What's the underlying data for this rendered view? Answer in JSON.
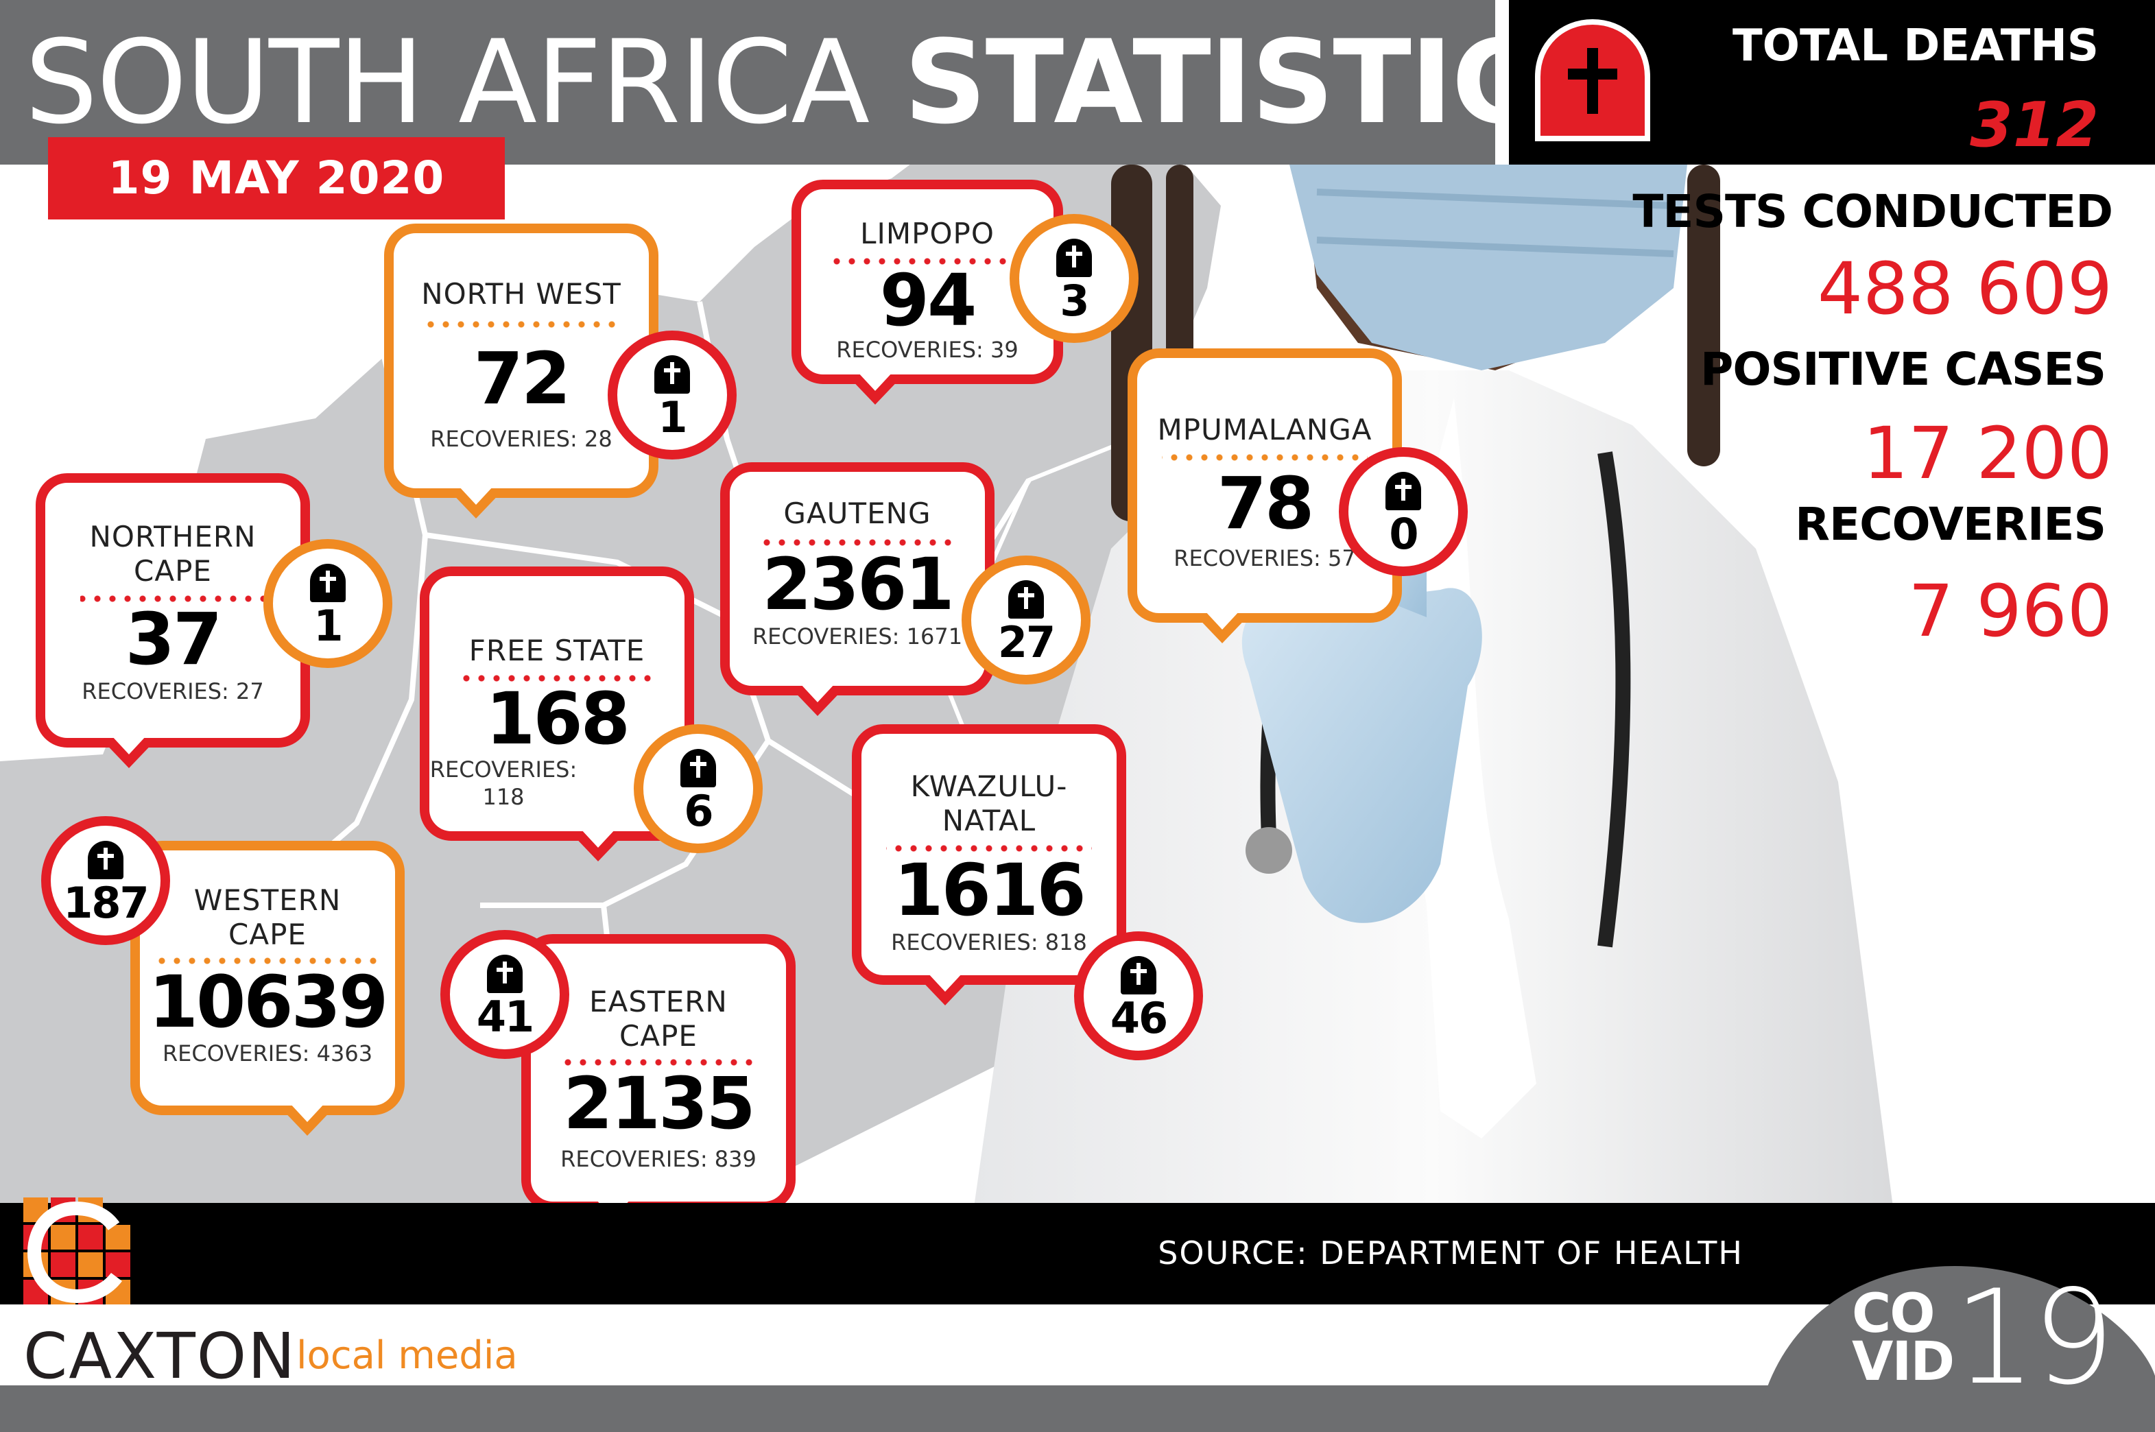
{
  "header": {
    "title_light": "SOUTH AFRICA",
    "title_bold": "STATISTICS",
    "date": "19 MAY 2020"
  },
  "totals": {
    "deaths_label": "TOTAL DEATHS",
    "deaths_value": "312",
    "tests_label": "TESTS CONDUCTED",
    "tests_value": "488 609",
    "positive_label": "POSITIVE CASES",
    "positive_value": "17 200",
    "recoveries_label": "RECOVERIES",
    "recoveries_value": "7 960"
  },
  "provinces": [
    {
      "id": "north-west",
      "name": "NORTH WEST",
      "cases": "72",
      "recoveries": "RECOVERIES: 28",
      "deaths": "1"
    },
    {
      "id": "limpopo",
      "name": "LIMPOPO",
      "cases": "94",
      "recoveries": "RECOVERIES: 39",
      "deaths": "3"
    },
    {
      "id": "mpumalanga",
      "name": "MPUMALANGA",
      "cases": "78",
      "recoveries": "RECOVERIES: 57",
      "deaths": "0"
    },
    {
      "id": "northern-cape",
      "name": "NORTHERN\nCAPE",
      "cases": "37",
      "recoveries": "RECOVERIES: 27",
      "deaths": "1"
    },
    {
      "id": "gauteng",
      "name": "GAUTENG",
      "cases": "2361",
      "recoveries": "RECOVERIES: 1671",
      "deaths": "27"
    },
    {
      "id": "free-state",
      "name": "FREE STATE",
      "cases": "168",
      "recoveries": "RECOVERIES:\n118",
      "deaths": "6"
    },
    {
      "id": "kwazulu-natal",
      "name": "KWAZULU-\nNATAL",
      "cases": "1616",
      "recoveries": "RECOVERIES: 818",
      "deaths": "46"
    },
    {
      "id": "western-cape",
      "name": "WESTERN\nCAPE",
      "cases": "10639",
      "recoveries": "RECOVERIES: 4363",
      "deaths": "187"
    },
    {
      "id": "eastern-cape",
      "name": "EASTERN\nCAPE",
      "cases": "2135",
      "recoveries": "RECOVERIES: 839",
      "deaths": "41"
    }
  ],
  "footer": {
    "source": "SOURCE: DEPARTMENT OF HEALTH",
    "brand_main": "CAXTON",
    "brand_sub": "local media",
    "badge_top": "CO",
    "badge_bottom": "VID",
    "badge_number": "19"
  },
  "colors": {
    "red": "#e31e26",
    "orange": "#f08a22",
    "header_grey": "#6d6e70",
    "map_grey": "#c9cacc",
    "black": "#000000"
  },
  "icons": {
    "death": "tombstone-icon",
    "logo": "caxton-logo-icon"
  }
}
